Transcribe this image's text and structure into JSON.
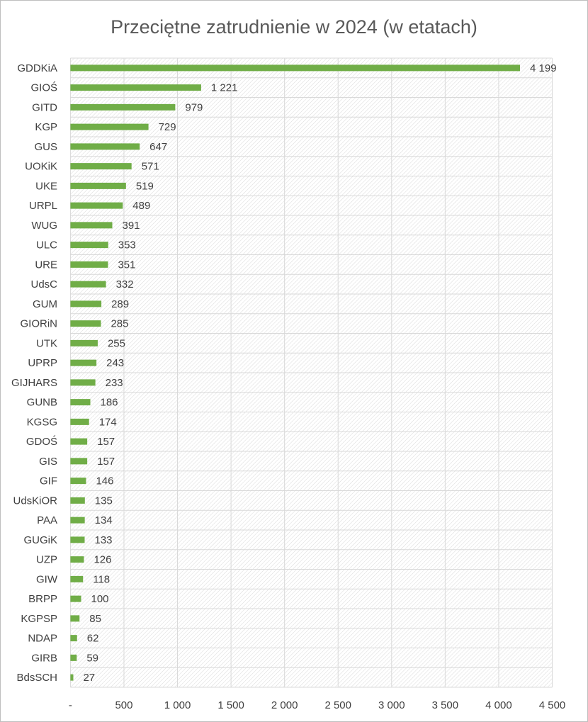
{
  "chart_data": {
    "type": "hbar",
    "title": "Przeciętne zatrudnienie w 2024 (w etatach)",
    "categories": [
      "GDDKiA",
      "GIOŚ",
      "GITD",
      "KGP",
      "GUS",
      "UOKiK",
      "UKE",
      "URPL",
      "WUG",
      "ULC",
      "URE",
      "UdsC",
      "GUM",
      "GIORiN",
      "UTK",
      "UPRP",
      "GIJHARS",
      "GUNB",
      "KGSG",
      "GDOŚ",
      "GIS",
      "GIF",
      "UdsKiOR",
      "PAA",
      "GUGiK",
      "UZP",
      "GIW",
      "BRPP",
      "KGPSP",
      "NDAP",
      "GIRB",
      "BdsSCH"
    ],
    "values": [
      4199,
      1221,
      979,
      729,
      647,
      571,
      519,
      489,
      391,
      353,
      351,
      332,
      289,
      285,
      255,
      243,
      233,
      186,
      174,
      157,
      157,
      146,
      135,
      134,
      133,
      126,
      118,
      100,
      85,
      62,
      59,
      27
    ],
    "value_labels": [
      "4 199",
      "1 221",
      "979",
      "729",
      "647",
      "571",
      "519",
      "489",
      "391",
      "353",
      "351",
      "332",
      "289",
      "285",
      "255",
      "243",
      "233",
      "186",
      "174",
      "157",
      "157",
      "146",
      "135",
      "134",
      "133",
      "126",
      "118",
      "100",
      "85",
      "62",
      "59",
      "27"
    ],
    "color": "#70ad47",
    "xlim": [
      0,
      4500
    ],
    "xticks": [
      {
        "value": 0,
        "label": "-"
      },
      500,
      {
        "value": 1000,
        "label": "1 000"
      },
      {
        "value": 1500,
        "label": "1 500"
      },
      {
        "value": 2000,
        "label": "2 000"
      },
      {
        "value": 2500,
        "label": "2 500"
      },
      {
        "value": 3000,
        "label": "3 000"
      },
      {
        "value": 3500,
        "label": "3 500"
      },
      {
        "value": 4000,
        "label": "4 000"
      },
      {
        "value": 4500,
        "label": "4 500"
      }
    ],
    "grid": true
  }
}
